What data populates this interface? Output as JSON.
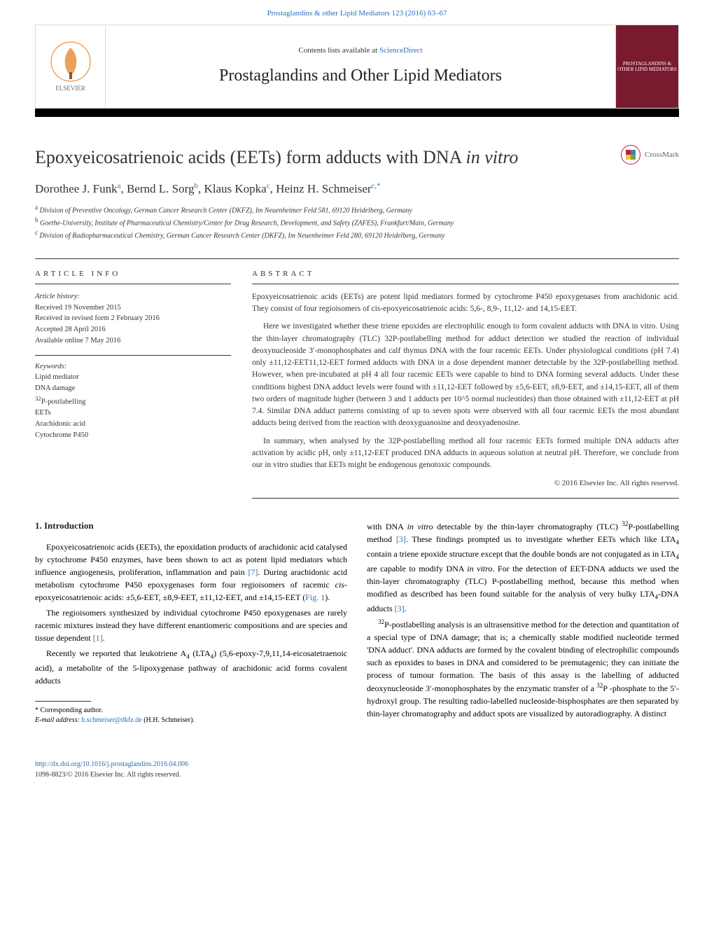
{
  "journal_link": "Prostaglandins & other Lipid Mediators 123 (2016) 63–67",
  "header": {
    "contents_prefix": "Contents lists available at ",
    "contents_link": "ScienceDirect",
    "journal_title": "Prostaglandins and Other Lipid Mediators",
    "elsevier_label": "ELSEVIER",
    "cover_text": "PROSTAGLANDINS & OTHER LIPID MEDIATORS"
  },
  "article": {
    "title_pre": "Epoxyeicosatrienoic acids (EETs) form adducts with DNA ",
    "title_italic": "in vitro",
    "crossmark": "CrossMark",
    "authors_html": "Dorothee J. Funk<sup>a</sup>, Bernd L. Sorg<sup>b</sup>, Klaus Kopka<sup>c</sup>, Heinz H. Schmeiser<sup>c,*</sup>",
    "affiliations": [
      "a Division of Preventive Oncology, German Cancer Research Center (DKFZ), Im Neuenheimer Feld 581, 69120 Heidelberg, Germany",
      "b Goethe-University, Institute of Pharmaceutical Chemistry/Center for Drug Research, Development, and Safety (ZAFES), Frankfurt/Main, Germany",
      "c Division of Radiopharmaceutical Chemistry, German Cancer Research Center (DKFZ), Im Neuenheimer Feld 280, 69120 Heidelberg, Germany"
    ]
  },
  "article_info": {
    "heading": "article info",
    "history_label": "Article history:",
    "history": [
      "Received 19 November 2015",
      "Received in revised form 2 February 2016",
      "Accepted 28 April 2016",
      "Available online 7 May 2016"
    ],
    "keywords_label": "Keywords:",
    "keywords": [
      "Lipid mediator",
      "DNA damage",
      "32P-postlabelling",
      "EETs",
      "Arachidonic acid",
      "Cytochrome P450"
    ]
  },
  "abstract": {
    "heading": "abstract",
    "p1": "Epoxyeicosatrienoic acids (EETs) are potent lipid mediators formed by cytochrome P450 epoxygenases from arachidonic acid. They consist of four regioisomers of cis-epoxyeicosatrienoic acids: 5,6-, 8,9-, 11,12- and 14,15-EET.",
    "p2": "Here we investigated whether these triene epoxides are electrophilic enough to form covalent adducts with DNA in vitro. Using the thin-layer chromatography (TLC) 32P-postlabelling method for adduct detection we studied the reaction of individual deoxynucleoside 3′-monophosphates and calf thymus DNA with the four racemic EETs. Under physiological conditions (pH 7.4) only ±11,12-EET11,12-EET formed adducts with DNA in a dose dependent manner detectable by the 32P-postlabelling method. However, when pre-incubated at pH 4 all four racemic EETs were capable to bind to DNA forming several adducts. Under these conditions highest DNA adduct levels were found with ±11,12-EET followed by ±5,6-EET, ±8,9-EET, and ±14,15-EET, all of them two orders of magnitude higher (between 3 and 1 adducts per 10^5 normal nucleotides) than those obtained with ±11,12-EET at pH 7.4. Similar DNA adduct patterns consisting of up to seven spots were observed with all four racemic EETs the most abundant adducts being derived from the reaction with deoxyguanosine and deoxyadenosine.",
    "p3": "In summary, when analysed by the 32P-postlabelling method all four racemic EETs formed multiple DNA adducts after activation by acidic pH, only ±11,12-EET produced DNA adducts in aqueous solution at neutral pH. Therefore, we conclude from our in vitro studies that EETs might be endogenous genotoxic compounds.",
    "copyright": "© 2016 Elsevier Inc. All rights reserved."
  },
  "introduction": {
    "heading": "1. Introduction",
    "left_p1": "Epoxyeicosatrienoic acids (EETs), the epoxidation products of arachidonic acid catalysed by cytochrome P450 enzymes, have been shown to act as potent lipid mediators which influence angiogenesis, proliferation, inflammation and pain [7]. During arachidonic acid metabolism cytochrome P450 epoxygenases form four regioisomers of racemic cis-epoxyeicosatrienoic acids: ±5,6-EET, ±8,9-EET, ±11,12-EET, and ±14,15-EET (Fig. 1).",
    "left_p2": "The regioisomers synthesized by individual cytochrome P450 epoxygenases are rarely racemic mixtures instead they have different enantiomeric compositions and are species and tissue dependent [1].",
    "left_p3": "Recently we reported that leukotriene A4 (LTA4) (5,6-epoxy-7,9,11,14-eicosatetraenoic acid), a metabolite of the 5-lipoxygenase pathway of arachidonic acid forms covalent adducts",
    "right_p1": "with DNA in vitro detectable by the thin-layer chromatography (TLC) 32P-postlabelling method [3]. These findings prompted us to investigate whether EETs which like LTA4 contain a triene epoxide structure except that the double bonds are not conjugated as in LTA4 are capable to modify DNA in vitro. For the detection of EET-DNA adducts we used the thin-layer chromatography (TLC) P-postlabelling method, because this method when modified as described has been found suitable for the analysis of very bulky LTA4-DNA adducts [3].",
    "right_p2": "32P-postlabelling analysis is an ultrasensitive method for the detection and quantitation of a special type of DNA damage; that is; a chemically stable modified nucleotide termed 'DNA adduct'. DNA adducts are formed by the covalent binding of electrophilic compounds such as epoxides to bases in DNA and considered to be premutagenic; they can initiate the process of tumour formation. The basis of this assay is the labelling of adducted deoxynucleoside 3′-monophosphates by the enzymatic transfer of a 32P -phosphate to the 5′-hydroxyl group. The resulting radio-labelled nucleoside-bisphosphates are then separated by thin-layer chromatography and adduct spots are visualized by autoradiography. A distinct"
  },
  "footnote": {
    "corr_label": "* Corresponding author.",
    "email_label": "E-mail address: ",
    "email": "h.schmeiser@dkfz.de",
    "email_suffix": " (H.H. Schmeiser)."
  },
  "footer": {
    "doi": "http://dx.doi.org/10.1016/j.prostaglandins.2016.04.006",
    "issn_line": "1098-8823/© 2016 Elsevier Inc. All rights reserved."
  },
  "colors": {
    "link": "#2a6ebb",
    "cover_bg": "#7a1a2e",
    "crossmark_ring": "#b8272d"
  }
}
